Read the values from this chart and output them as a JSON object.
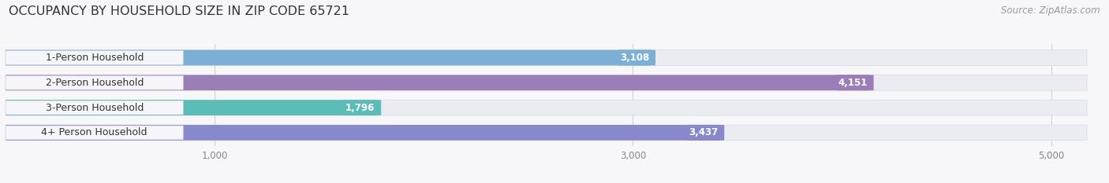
{
  "title": "OCCUPANCY BY HOUSEHOLD SIZE IN ZIP CODE 65721",
  "source": "Source: ZipAtlas.com",
  "categories": [
    "1-Person Household",
    "2-Person Household",
    "3-Person Household",
    "4+ Person Household"
  ],
  "values": [
    3108,
    4151,
    1796,
    3437
  ],
  "bar_colors": [
    "#7bafd4",
    "#9b7eb8",
    "#5bbcb8",
    "#8888cc"
  ],
  "bar_bg_color": "#ebebf2",
  "label_bg_color": "#f5f5fa",
  "xlim": [
    0,
    5250
  ],
  "xticks": [
    1000,
    3000,
    5000
  ],
  "xtick_labels": [
    "1,000",
    "3,000",
    "5,000"
  ],
  "value_labels": [
    "3,108",
    "4,151",
    "1,796",
    "3,437"
  ],
  "title_fontsize": 11.5,
  "source_fontsize": 8.5,
  "label_fontsize": 9,
  "value_fontsize": 8.5,
  "tick_fontsize": 8.5,
  "bar_height": 0.62,
  "fig_bg_color": "#f7f7f9",
  "figsize": [
    14.06,
    2.33
  ],
  "dpi": 100
}
